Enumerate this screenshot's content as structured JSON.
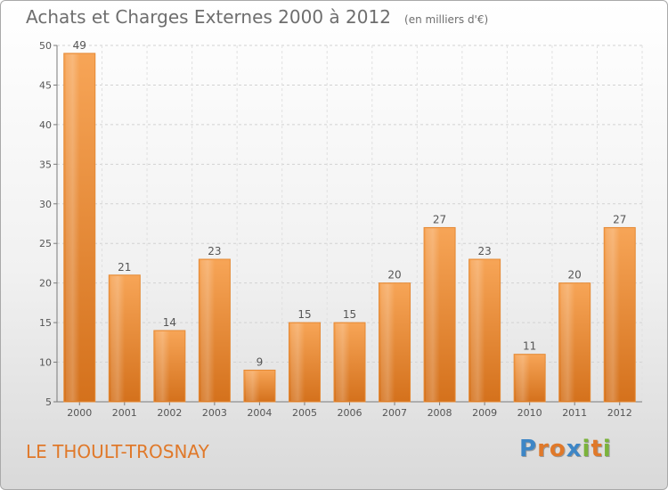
{
  "chart_data": {
    "type": "bar",
    "title": "Achats et Charges Externes 2000 à 2012",
    "subtitle": "(en milliers d'€)",
    "categories": [
      "2000",
      "2001",
      "2002",
      "2003",
      "2004",
      "2005",
      "2006",
      "2007",
      "2008",
      "2009",
      "2010",
      "2011",
      "2012"
    ],
    "values": [
      49,
      21,
      14,
      23,
      9,
      15,
      15,
      20,
      27,
      23,
      11,
      20,
      27
    ],
    "ylim": [
      5,
      50
    ],
    "yticks": [
      5,
      10,
      15,
      20,
      25,
      30,
      35,
      40,
      45,
      50
    ],
    "grid": true,
    "bar_color": "#f0933a"
  },
  "footer": {
    "commune": "LE THOULT-TROSNAY",
    "logo_letters": [
      "P",
      "r",
      "o",
      "x",
      "i",
      "t",
      "i"
    ],
    "logo_colors": [
      "#3d86c6",
      "#e0792a",
      "#e0792a",
      "#3d86c6",
      "#7bb33b",
      "#e0792a",
      "#7bb33b"
    ]
  }
}
